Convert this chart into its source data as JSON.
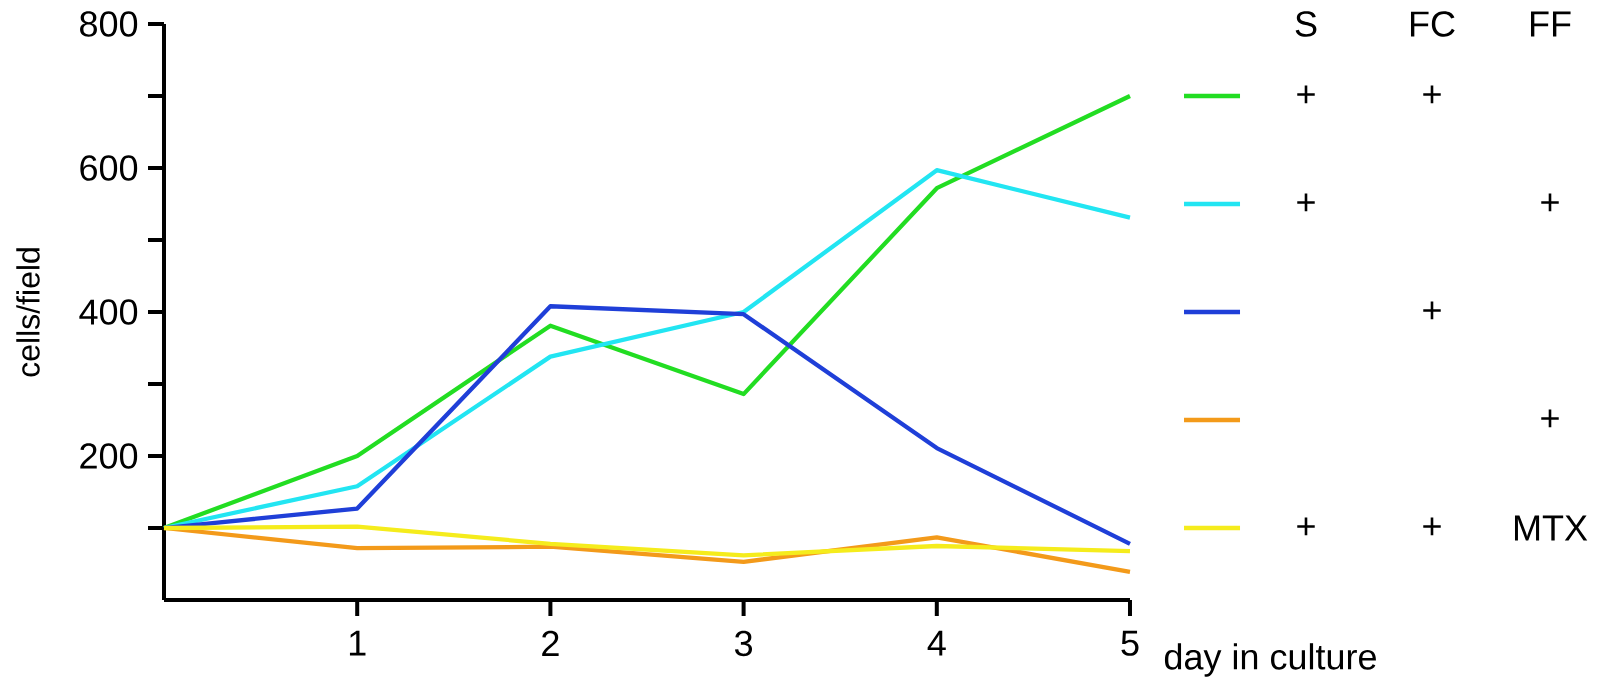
{
  "chart_data": {
    "type": "line",
    "xlabel": "day in culture",
    "ylabel": "cells/field",
    "x": [
      0,
      1,
      2,
      3,
      4,
      5
    ],
    "xlim": [
      0,
      5
    ],
    "xticks": [
      1,
      2,
      3,
      4,
      5
    ],
    "ylim": [
      0,
      800
    ],
    "yticks": [
      {
        "value": 100,
        "label": null
      },
      200,
      {
        "value": 300,
        "label": null
      },
      400,
      {
        "value": 500,
        "label": null
      },
      600,
      {
        "value": 700,
        "label": null
      },
      800
    ],
    "series": [
      {
        "color": "#22dd22",
        "values": [
          100,
          200,
          381,
          286,
          572,
          700
        ]
      },
      {
        "color": "#22e5f2",
        "values": [
          100,
          158,
          338,
          400,
          597,
          531
        ]
      },
      {
        "color": "#1f3fd8",
        "values": [
          100,
          127,
          408,
          397,
          211,
          78
        ]
      },
      {
        "color": "#f39a1a",
        "values": [
          100,
          72,
          74,
          53,
          87,
          39
        ]
      },
      {
        "color": "#f5ec1c",
        "values": [
          100,
          102,
          78,
          62,
          75,
          68
        ]
      }
    ],
    "grid": false,
    "marker": "none",
    "line_style": "solid",
    "annotations": [
      "S",
      "FC",
      "FF",
      "+",
      "+",
      "+",
      "+",
      "+",
      "+",
      "+",
      "+",
      "MTX"
    ]
  }
}
